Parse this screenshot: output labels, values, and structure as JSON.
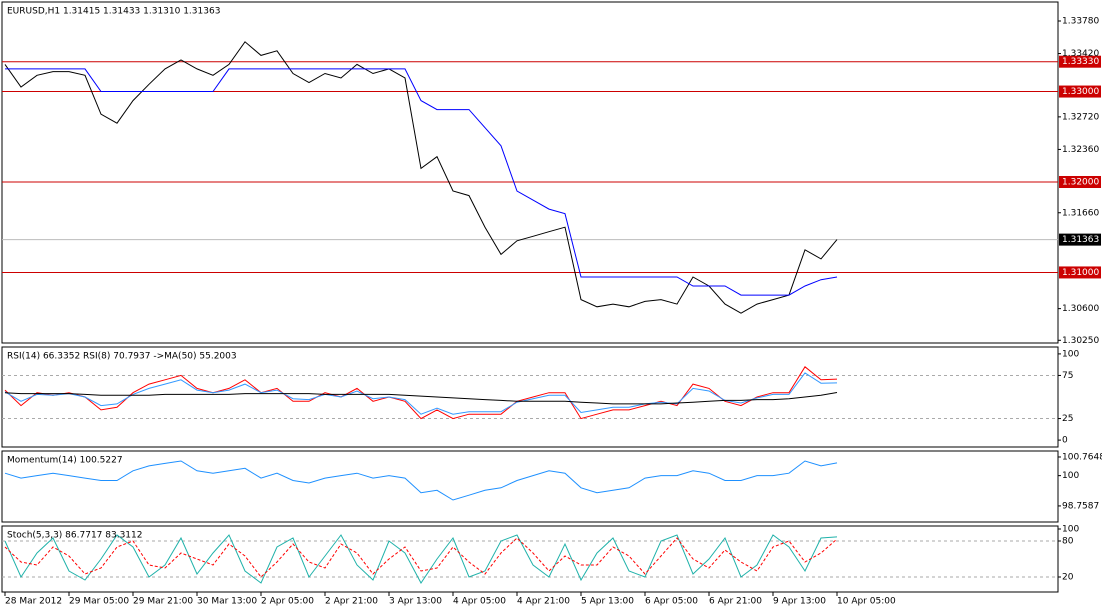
{
  "chart_data": [
    {
      "type": "line",
      "title": "EURUSD,H1  1.31415 1.31433 1.31310 1.31363",
      "categories": [
        "28 Mar 2012",
        null,
        null,
        null,
        "29 Mar 05:00",
        null,
        null,
        null,
        "29 Mar 21:00",
        null,
        null,
        null,
        "30 Mar 13:00",
        null,
        null,
        null,
        "2 Apr 05:00",
        null,
        null,
        null,
        "2 Apr 21:00",
        null,
        null,
        null,
        "3 Apr 13:00",
        null,
        null,
        null,
        "4 Apr 05:00",
        null,
        null,
        null,
        "4 Apr 21:00",
        null,
        null,
        null,
        "5 Apr 13:00",
        null,
        null,
        null,
        "6 Apr 05:00",
        null,
        null,
        null,
        "6 Apr 21:00",
        null,
        null,
        null,
        "9 Apr 13:00",
        null,
        null,
        null,
        "10 Apr 05:00"
      ],
      "series": [
        {
          "color": "#000000",
          "values": [
            1.333,
            1.3305,
            1.3318,
            1.3322,
            1.3322,
            1.3318,
            1.3275,
            1.3265,
            1.329,
            1.3308,
            1.3325,
            1.3335,
            1.3325,
            1.3318,
            1.333,
            1.3355,
            1.334,
            1.3345,
            1.332,
            1.331,
            1.332,
            1.3315,
            1.333,
            1.332,
            1.3325,
            1.3315,
            1.3215,
            1.3228,
            1.319,
            1.3185,
            1.315,
            1.312,
            1.3135,
            1.314,
            1.3145,
            1.315,
            1.307,
            1.3062,
            1.3065,
            1.3062,
            1.3068,
            1.307,
            1.3065,
            1.3095,
            1.3085,
            1.3065,
            1.3055,
            1.3065,
            1.307,
            1.3075,
            1.3125,
            1.3115,
            1.31363
          ]
        },
        {
          "color": "#0000ff",
          "values": [
            1.3325,
            1.3325,
            1.3325,
            1.3325,
            1.3325,
            1.3325,
            1.33,
            1.33,
            1.33,
            1.33,
            1.33,
            1.33,
            1.33,
            1.33,
            1.3325,
            1.3325,
            1.3325,
            1.3325,
            1.3325,
            1.3325,
            1.3325,
            1.3325,
            1.3325,
            1.3325,
            1.3325,
            1.3325,
            1.329,
            1.328,
            1.328,
            1.328,
            1.326,
            1.324,
            1.319,
            1.318,
            1.317,
            1.3165,
            1.3095,
            1.3095,
            1.3095,
            1.3095,
            1.3095,
            1.3095,
            1.3095,
            1.3085,
            1.3085,
            1.3085,
            1.3075,
            1.3075,
            1.3075,
            1.3075,
            1.3085,
            1.3092,
            1.3095
          ]
        }
      ],
      "ylim": [
        1.3022,
        1.3399
      ],
      "yticks": [
        {
          "value": 1.3378,
          "label": "1.33780"
        },
        {
          "value": 1.3342,
          "label": "1.33420"
        },
        {
          "value": 1.3272,
          "label": "1.32720"
        },
        {
          "value": 1.3236,
          "label": "1.32360"
        },
        {
          "value": 1.3166,
          "label": "1.31660"
        },
        {
          "value": 1.306,
          "label": "1.30600"
        },
        {
          "value": 1.3025,
          "label": "1.30250"
        }
      ],
      "levels": [
        {
          "value": 1.3333,
          "label": "1.33330"
        },
        {
          "value": 1.33,
          "label": "1.33000"
        },
        {
          "value": 1.32,
          "label": "1.32000"
        },
        {
          "value": 1.31,
          "label": "1.31000"
        }
      ],
      "level_color": "#cc0000",
      "current_price": {
        "value": 1.31363,
        "label": "1.31363"
      }
    },
    {
      "type": "line",
      "title": "RSI(14) 66.3352  RSI(8) 70.7937  ->MA(50) 55.2003",
      "series": [
        {
          "color": "#ff0000",
          "values": [
            58,
            40,
            55,
            52,
            55,
            50,
            35,
            38,
            55,
            65,
            70,
            75,
            60,
            55,
            60,
            70,
            55,
            60,
            45,
            45,
            55,
            50,
            60,
            45,
            50,
            45,
            25,
            35,
            25,
            30,
            30,
            30,
            45,
            50,
            55,
            55,
            25,
            30,
            35,
            35,
            40,
            45,
            40,
            65,
            60,
            45,
            40,
            50,
            55,
            55,
            85,
            70,
            70.7937
          ]
        },
        {
          "color": "#3399ff",
          "values": [
            56,
            45,
            53,
            52,
            54,
            50,
            40,
            42,
            53,
            60,
            65,
            70,
            58,
            55,
            58,
            65,
            55,
            58,
            48,
            47,
            53,
            50,
            57,
            48,
            50,
            47,
            30,
            37,
            30,
            33,
            33,
            33,
            44,
            48,
            52,
            52,
            32,
            35,
            38,
            38,
            42,
            44,
            42,
            60,
            57,
            46,
            43,
            49,
            53,
            53,
            78,
            66,
            66.3352
          ]
        },
        {
          "color": "#000000",
          "values": [
            55,
            54,
            54,
            54,
            54,
            53,
            52,
            52,
            52,
            52,
            53,
            53,
            53,
            53,
            53,
            54,
            54,
            54,
            54,
            54,
            53,
            53,
            53,
            53,
            53,
            52,
            51,
            50,
            49,
            48,
            47,
            46,
            45,
            45,
            45,
            45,
            44,
            43,
            42,
            42,
            42,
            42,
            43,
            44,
            45,
            46,
            46,
            47,
            47,
            48,
            50,
            52,
            55.2003
          ]
        }
      ],
      "ylim": [
        -8,
        108
      ],
      "yticks": [
        0,
        25,
        75,
        100
      ],
      "levels": [
        25,
        75
      ]
    },
    {
      "type": "line",
      "title": "Momentum(14) 100.5227",
      "series": [
        {
          "color": "#1e90ff",
          "values": [
            100.1,
            99.9,
            100.0,
            100.1,
            100.0,
            99.9,
            99.8,
            99.8,
            100.2,
            100.4,
            100.5,
            100.6,
            100.2,
            100.1,
            100.2,
            100.3,
            99.9,
            100.1,
            99.8,
            99.7,
            99.9,
            100.0,
            100.1,
            99.9,
            100.0,
            99.9,
            99.3,
            99.4,
            99.0,
            99.2,
            99.4,
            99.5,
            99.8,
            100.0,
            100.2,
            100.1,
            99.5,
            99.3,
            99.4,
            99.5,
            99.9,
            100.0,
            100.0,
            100.2,
            100.1,
            99.8,
            99.8,
            100.0,
            100.0,
            100.1,
            100.6,
            100.4,
            100.5227
          ]
        }
      ],
      "ylim": [
        98.1,
        101.01
      ],
      "yticks": [
        98.7587,
        100,
        100.7648
      ]
    },
    {
      "type": "line",
      "title": "Stoch(5,3,3) 86.7717 83.3112",
      "series": [
        {
          "color": "#20b2aa",
          "values": [
            80,
            20,
            60,
            85,
            30,
            15,
            50,
            90,
            70,
            20,
            40,
            85,
            25,
            60,
            90,
            30,
            10,
            70,
            85,
            20,
            55,
            90,
            40,
            15,
            80,
            60,
            10,
            50,
            85,
            20,
            30,
            80,
            90,
            40,
            20,
            75,
            15,
            60,
            85,
            30,
            20,
            80,
            90,
            25,
            50,
            85,
            20,
            40,
            90,
            70,
            30,
            85,
            86.7717
          ]
        },
        {
          "color": "#ff0000",
          "dashed": true,
          "values": [
            70,
            45,
            40,
            70,
            55,
            25,
            35,
            70,
            80,
            40,
            35,
            60,
            50,
            40,
            75,
            55,
            20,
            45,
            75,
            45,
            35,
            75,
            60,
            25,
            50,
            70,
            30,
            35,
            70,
            45,
            25,
            60,
            85,
            60,
            30,
            55,
            40,
            40,
            70,
            55,
            25,
            55,
            85,
            50,
            35,
            65,
            45,
            30,
            70,
            80,
            45,
            60,
            83.3112
          ]
        }
      ],
      "ylim": [
        -5,
        105
      ],
      "yticks": [
        20,
        80,
        100
      ],
      "levels": [
        20,
        80
      ]
    }
  ]
}
